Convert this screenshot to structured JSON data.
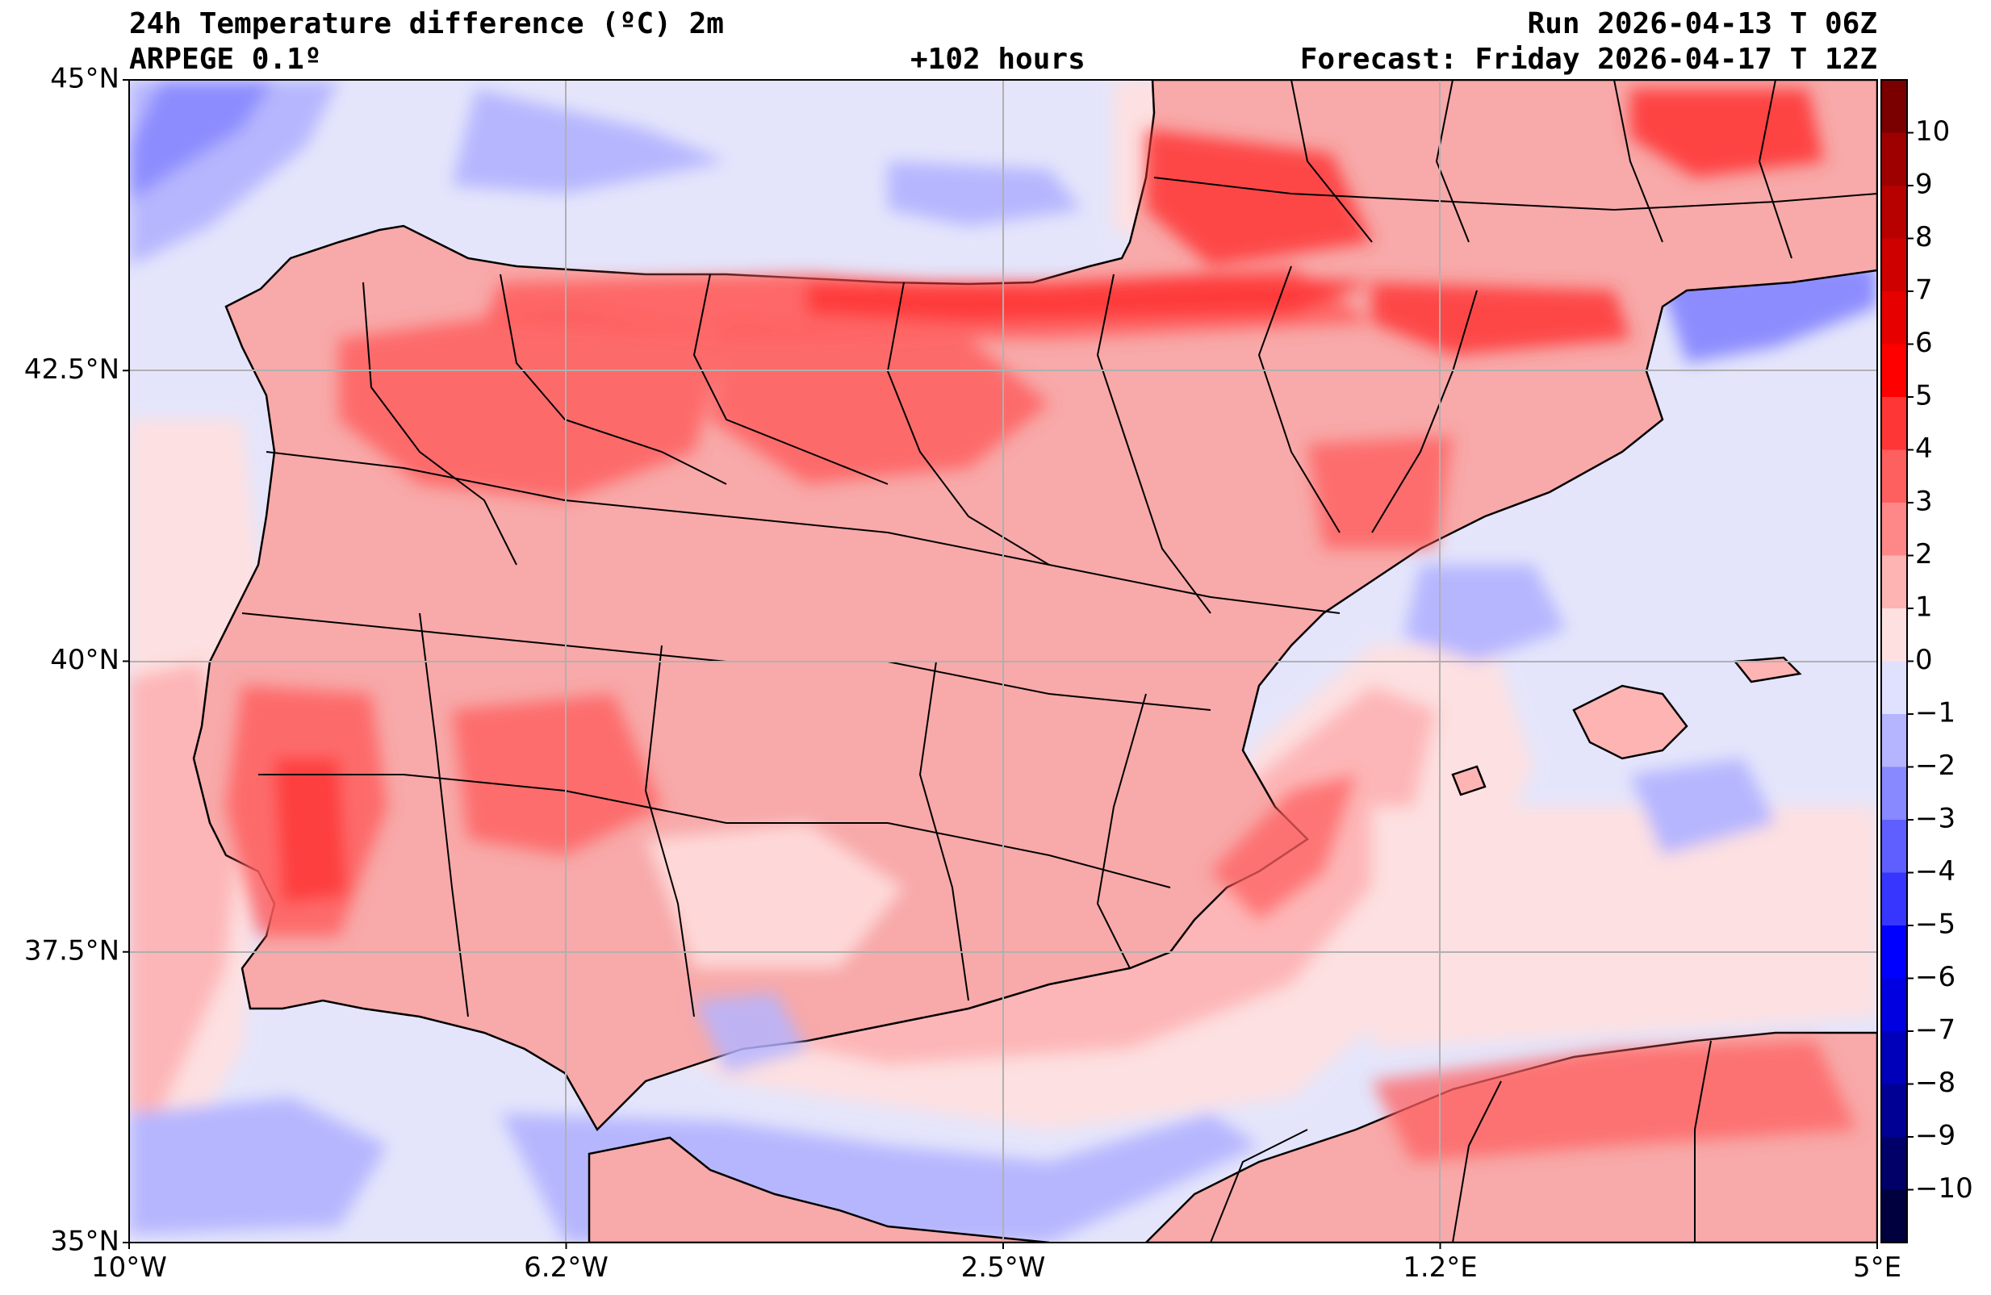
{
  "header": {
    "title": "24h Temperature difference (ºC) 2m",
    "model": "ARPEGE 0.1º",
    "lead": "+102 hours",
    "run": "Run 2026-04-13 T 06Z",
    "forecast": "Forecast: Friday 2026-04-17 T 12Z"
  },
  "map": {
    "lon_range": [
      -10,
      5
    ],
    "lat_range": [
      35,
      45
    ],
    "lat_ticks": [
      {
        "value": 45,
        "label": "45°N"
      },
      {
        "value": 42.5,
        "label": "42.5°N"
      },
      {
        "value": 40,
        "label": "40°N"
      },
      {
        "value": 37.5,
        "label": "37.5°N"
      },
      {
        "value": 35,
        "label": "35°N"
      }
    ],
    "lon_ticks": [
      {
        "value": -10,
        "label": "10°W"
      },
      {
        "value": -6.25,
        "label": "6.2°W"
      },
      {
        "value": -2.5,
        "label": "2.5°W"
      },
      {
        "value": 1.25,
        "label": "1.2°E"
      },
      {
        "value": 5,
        "label": "5°E"
      }
    ],
    "grid": true,
    "ocean_color": "#e4e5fb",
    "land_color": "#f8a9a9"
  },
  "colorbar": {
    "labels": [
      "10",
      "9",
      "8",
      "7",
      "6",
      "5",
      "4",
      "3",
      "2",
      "1",
      "0",
      "−1",
      "−2",
      "−3",
      "−4",
      "−5",
      "−6",
      "−7",
      "−8",
      "−9",
      "−10"
    ],
    "colors": [
      "#7a0000",
      "#9e0000",
      "#b70000",
      "#cf0000",
      "#e60000",
      "#fe0000",
      "#fe3636",
      "#fe5f5f",
      "#fe8888",
      "#ffb4b4",
      "#ffe0e0",
      "#e0e0ff",
      "#b4b4ff",
      "#8888ff",
      "#5f5fff",
      "#3636ff",
      "#0000fe",
      "#0000e0",
      "#0000bb",
      "#000095",
      "#000068",
      "#00003e"
    ]
  }
}
